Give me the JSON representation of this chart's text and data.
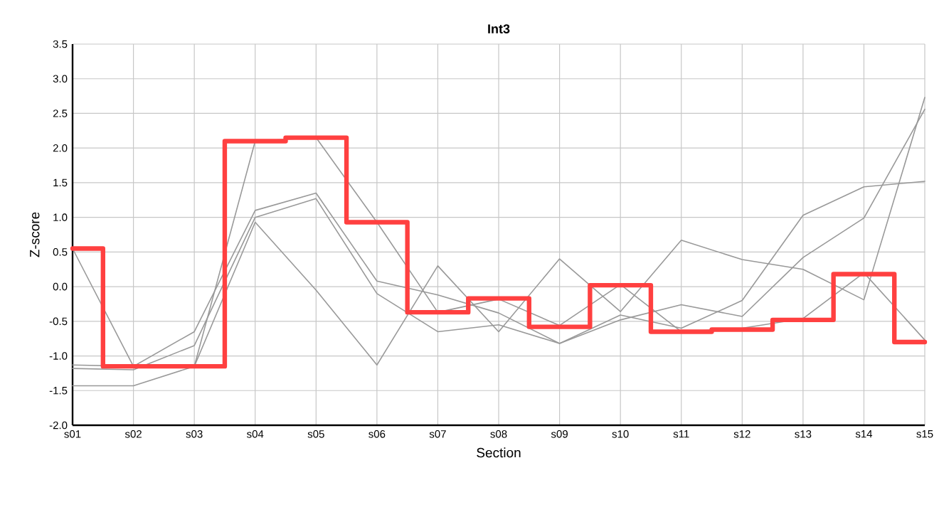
{
  "chart_data": {
    "type": "line",
    "title": "Int3",
    "xlabel": "Section",
    "ylabel": "Z-score",
    "categories": [
      "s01",
      "s02",
      "s03",
      "s04",
      "s05",
      "s06",
      "s07",
      "s08",
      "s09",
      "s10",
      "s11",
      "s12",
      "s13",
      "s14",
      "s15"
    ],
    "series": [
      {
        "color": "#999999",
        "values": [
          0.55,
          -1.15,
          -1.15,
          2.1,
          2.15,
          0.93,
          -0.37,
          -0.18,
          -0.56,
          0.03,
          -0.65,
          -0.6,
          -0.46,
          0.2,
          -0.77
        ]
      },
      {
        "color": "#999999",
        "values": [
          -1.13,
          -1.15,
          -0.65,
          1.1,
          1.35,
          0.08,
          -0.12,
          -0.38,
          -0.82,
          -0.41,
          -0.6,
          -0.2,
          1.03,
          1.44,
          1.52
        ]
      },
      {
        "color": "#999999",
        "values": [
          -1.18,
          -1.2,
          -0.85,
          1.0,
          1.27,
          -0.1,
          -0.65,
          -0.55,
          -0.82,
          -0.48,
          -0.26,
          -0.43,
          0.42,
          0.99,
          2.56
        ]
      },
      {
        "color": "#999999",
        "values": [
          -1.43,
          -1.43,
          -1.15,
          0.93,
          -0.05,
          -1.13,
          0.3,
          -0.65,
          0.4,
          -0.36,
          0.67,
          0.39,
          0.25,
          -0.19,
          2.73
        ]
      },
      {
        "type": "step",
        "color": "#ff4040",
        "values": [
          0.55,
          -1.15,
          -1.15,
          2.1,
          2.15,
          0.93,
          -0.37,
          -0.17,
          -0.58,
          0.02,
          -0.65,
          -0.62,
          -0.48,
          0.18,
          -0.8
        ]
      }
    ],
    "ylim": [
      -2.0,
      3.5
    ],
    "yticks": [
      {
        "value": -2,
        "label": "-2.0"
      },
      -1.5,
      {
        "value": -1,
        "label": "-1.0"
      },
      -0.5,
      {
        "value": 0,
        "label": "0.0"
      },
      0.5,
      {
        "value": 1,
        "label": "1.0"
      },
      1.5,
      {
        "value": 2,
        "label": "2.0"
      },
      2.5,
      {
        "value": 3,
        "label": "3.0"
      },
      3.5
    ],
    "grid": true,
    "marker": "none"
  }
}
